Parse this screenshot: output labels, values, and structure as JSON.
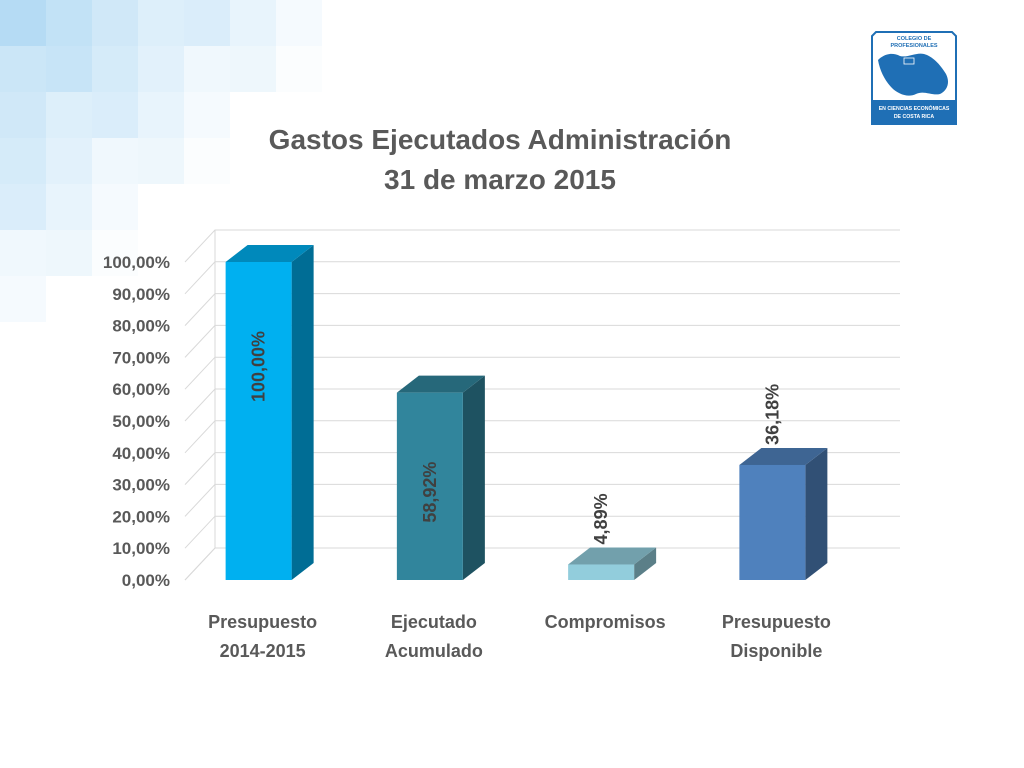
{
  "chart_data": {
    "type": "bar",
    "title": "Gastos Ejecutados Administración",
    "subtitle": "31 de marzo 2015",
    "xlabel": "",
    "ylabel": "",
    "ylim": [
      0,
      100
    ],
    "y_ticks": [
      "0,00%",
      "10,00%",
      "20,00%",
      "30,00%",
      "40,00%",
      "50,00%",
      "60,00%",
      "70,00%",
      "80,00%",
      "90,00%",
      "100,00%"
    ],
    "grid": true,
    "style": "3d-column",
    "categories": [
      [
        "Presupuesto",
        "2014-2015"
      ],
      [
        "Ejecutado",
        "Acumulado"
      ],
      [
        "Compromisos"
      ],
      [
        "Presupuesto",
        "Disponible"
      ]
    ],
    "values": [
      100.0,
      58.92,
      4.89,
      36.18
    ],
    "data_labels": [
      "100,00%",
      "58,92%",
      "4,89%",
      "36,18%"
    ],
    "colors": [
      "#00B0F0",
      "#31859C",
      "#92CDDC",
      "#4F81BD"
    ]
  },
  "logo": {
    "line1": "COLEGIO DE",
    "line2": "PROFESIONALES",
    "line3": "EN CIENCIAS ECONÓMICAS",
    "line4": "DE COSTA RICA",
    "color": "#1F6FB5"
  }
}
